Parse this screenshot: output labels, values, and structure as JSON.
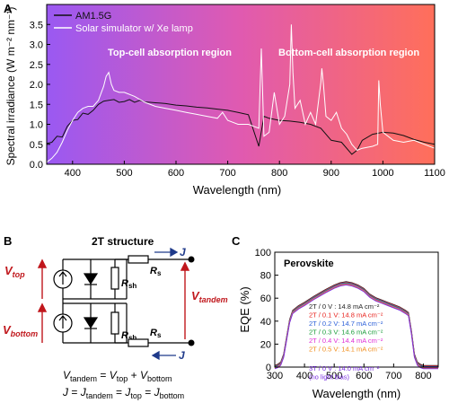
{
  "panels": {
    "a": "A",
    "b": "B",
    "c": "C"
  },
  "chart_data": [
    {
      "type": "line",
      "xlabel": "Wavelength (nm)",
      "ylabel": "Spectral irradiance (W m⁻² nm⁻¹)",
      "xlim": [
        350,
        1100
      ],
      "ylim": [
        0,
        4.0
      ],
      "xticks": [
        400,
        500,
        600,
        700,
        800,
        900,
        1000,
        1100
      ],
      "yticks": [
        0.0,
        0.5,
        1.0,
        1.5,
        2.0,
        2.5,
        3.0,
        3.5
      ],
      "background_gradient": [
        "#9a59f2",
        "#e05ab0",
        "#ff6f5a"
      ],
      "annotations": [
        "Top-cell absorption region",
        "Bottom-cell absorption region"
      ],
      "legend_position": "top-left",
      "series": [
        {
          "name": "AM1.5G",
          "color": "#111111",
          "x": [
            350,
            360,
            370,
            380,
            390,
            400,
            410,
            420,
            430,
            440,
            450,
            460,
            470,
            480,
            490,
            500,
            510,
            520,
            530,
            540,
            550,
            560,
            570,
            580,
            590,
            600,
            620,
            640,
            660,
            680,
            700,
            720,
            740,
            760,
            770,
            780,
            800,
            820,
            840,
            860,
            880,
            900,
            920,
            940,
            950,
            960,
            980,
            1000,
            1020,
            1040,
            1060,
            1080,
            1100
          ],
          "y": [
            0.52,
            0.55,
            0.7,
            0.68,
            0.95,
            1.1,
            1.12,
            1.28,
            1.25,
            1.35,
            1.5,
            1.58,
            1.6,
            1.62,
            1.55,
            1.57,
            1.62,
            1.55,
            1.6,
            1.56,
            1.55,
            1.54,
            1.53,
            1.52,
            1.5,
            1.48,
            1.46,
            1.43,
            1.41,
            1.38,
            1.35,
            1.3,
            1.24,
            0.45,
            1.2,
            1.15,
            1.1,
            1.08,
            1.05,
            1.0,
            0.9,
            0.6,
            0.55,
            0.25,
            0.35,
            0.6,
            0.75,
            0.8,
            0.78,
            0.72,
            0.62,
            0.55,
            0.5
          ]
        },
        {
          "name": "Solar simulator w/ Xe lamp",
          "color": "#ffffff",
          "x": [
            350,
            360,
            370,
            380,
            390,
            400,
            410,
            420,
            430,
            440,
            450,
            460,
            465,
            470,
            475,
            480,
            490,
            500,
            520,
            540,
            560,
            580,
            600,
            620,
            640,
            660,
            680,
            690,
            700,
            720,
            740,
            750,
            760,
            765,
            770,
            780,
            790,
            800,
            810,
            820,
            823,
            826,
            830,
            840,
            850,
            860,
            870,
            880,
            882,
            885,
            890,
            900,
            910,
            920,
            930,
            940,
            950,
            960,
            980,
            990,
            992,
            995,
            1000,
            1020,
            1040,
            1060,
            1080,
            1100
          ],
          "y": [
            0.05,
            0.15,
            0.3,
            0.55,
            0.85,
            1.1,
            1.3,
            1.4,
            1.45,
            1.45,
            1.6,
            1.95,
            2.2,
            2.3,
            2.0,
            1.85,
            1.8,
            1.8,
            1.7,
            1.55,
            1.45,
            1.4,
            1.35,
            1.3,
            1.25,
            1.2,
            1.15,
            1.3,
            1.1,
            1.0,
            1.0,
            0.95,
            0.9,
            2.9,
            0.7,
            0.8,
            1.8,
            1.0,
            1.2,
            2.0,
            3.5,
            2.3,
            1.4,
            1.6,
            1.0,
            1.3,
            1.0,
            2.05,
            2.4,
            2.0,
            1.2,
            1.1,
            1.3,
            0.9,
            0.75,
            0.5,
            0.35,
            0.4,
            0.45,
            0.5,
            2.1,
            1.5,
            0.8,
            0.6,
            0.55,
            0.6,
            0.5,
            0.4
          ]
        }
      ]
    },
    {
      "type": "line",
      "title": "Perovskite",
      "xlabel": "Wavelength (nm)",
      "ylabel": "EQE (%)",
      "xlim": [
        300,
        850
      ],
      "ylim": [
        0,
        100
      ],
      "xticks": [
        300,
        400,
        500,
        600,
        700,
        800
      ],
      "yticks": [
        0,
        20,
        40,
        60,
        80,
        100
      ],
      "legend_position": "lower-center",
      "series": [
        {
          "name": "2T / 0 V",
          "legend": "2T / 0 V : 14.8 mA cm⁻²",
          "color": "#222222",
          "x": [
            300,
            310,
            320,
            330,
            340,
            350,
            360,
            380,
            400,
            430,
            450,
            470,
            500,
            520,
            540,
            560,
            580,
            600,
            620,
            640,
            660,
            680,
            700,
            720,
            740,
            750,
            760,
            770,
            780,
            790,
            800,
            820,
            850
          ],
          "y": [
            0,
            1,
            3,
            10,
            25,
            40,
            48,
            52,
            55,
            60,
            63,
            66,
            70,
            72,
            73,
            72,
            70,
            67,
            62,
            59,
            57,
            55,
            53,
            51,
            48,
            46,
            30,
            10,
            3,
            1,
            0,
            0,
            0
          ]
        },
        {
          "name": "2T / 0.1 V",
          "legend": "2T / 0.1 V: 14.8 mA cm⁻²",
          "color": "#e8231e",
          "x": [
            300,
            310,
            320,
            330,
            340,
            350,
            360,
            380,
            400,
            430,
            450,
            470,
            500,
            520,
            540,
            560,
            580,
            600,
            620,
            640,
            660,
            680,
            700,
            720,
            740,
            750,
            760,
            770,
            780,
            790,
            800,
            820,
            850
          ],
          "y": [
            0,
            1,
            3,
            10,
            25,
            40,
            48,
            52,
            55,
            60,
            63,
            66,
            70,
            72,
            73,
            72,
            70,
            67,
            62,
            59,
            57,
            55,
            53,
            51,
            48,
            46,
            30,
            10,
            3,
            1,
            0,
            0,
            0
          ]
        },
        {
          "name": "2T / 0.2 V",
          "legend": "2T / 0.2 V: 14.7 mA cm⁻²",
          "color": "#2f62d9",
          "x": [
            300,
            310,
            320,
            330,
            340,
            350,
            360,
            380,
            400,
            430,
            450,
            470,
            500,
            520,
            540,
            560,
            580,
            600,
            620,
            640,
            660,
            680,
            700,
            720,
            740,
            750,
            760,
            770,
            780,
            790,
            800,
            820,
            850
          ],
          "y": [
            0,
            1,
            3,
            10,
            25,
            40,
            48,
            52,
            55,
            60,
            63,
            66,
            70,
            72,
            73,
            72,
            70,
            67,
            62,
            59,
            57,
            55,
            53,
            51,
            48,
            46,
            30,
            10,
            3,
            1,
            0,
            0,
            0
          ]
        },
        {
          "name": "2T / 0.3 V",
          "legend": "2T / 0.3 V: 14.6 mA cm⁻²",
          "color": "#1a9c3a",
          "x": [
            300,
            310,
            320,
            330,
            340,
            350,
            360,
            380,
            400,
            430,
            450,
            470,
            500,
            520,
            540,
            560,
            580,
            600,
            620,
            640,
            660,
            680,
            700,
            720,
            740,
            750,
            760,
            770,
            780,
            790,
            800,
            820,
            850
          ],
          "y": [
            0,
            1,
            3,
            10,
            25,
            40,
            48,
            52,
            55,
            60,
            63,
            66,
            70,
            72,
            73,
            72,
            70,
            67,
            62,
            59,
            57,
            55,
            53,
            51,
            48,
            46,
            30,
            10,
            3,
            1,
            0,
            0,
            0
          ]
        },
        {
          "name": "2T / 0.4 V",
          "legend": "2T / 0.4 V: 14.4 mA cm⁻²",
          "color": "#e02fd6",
          "x": [
            300,
            310,
            320,
            330,
            340,
            350,
            360,
            380,
            400,
            430,
            450,
            470,
            500,
            520,
            540,
            560,
            580,
            600,
            620,
            640,
            660,
            680,
            700,
            720,
            740,
            750,
            760,
            770,
            780,
            790,
            800,
            820,
            850
          ],
          "y": [
            0,
            1,
            3,
            10,
            25,
            40,
            48,
            52,
            55,
            60,
            63,
            66,
            70,
            72,
            73,
            72,
            70,
            67,
            62,
            59,
            57,
            55,
            53,
            51,
            48,
            46,
            30,
            10,
            3,
            1,
            0,
            0,
            0
          ]
        },
        {
          "name": "2T / 0.5 V",
          "legend": "2T / 0.5 V: 14.1 mA cm⁻²",
          "color": "#f08c1a",
          "x": [
            300,
            310,
            320,
            330,
            340,
            350,
            360,
            380,
            400,
            430,
            450,
            470,
            500,
            520,
            540,
            560,
            580,
            600,
            620,
            640,
            660,
            680,
            700,
            720,
            740,
            750,
            760,
            770,
            780,
            790,
            800,
            820,
            850
          ],
          "y": [
            0,
            1,
            3,
            10,
            25,
            40,
            48,
            52,
            55,
            60,
            63,
            66,
            70,
            72,
            73,
            72,
            70,
            67,
            62,
            59,
            57,
            55,
            53,
            51,
            48,
            46,
            30,
            10,
            3,
            1,
            0,
            0,
            0
          ]
        },
        {
          "name": "3T / 0 V",
          "legend": "3T / 0 V : 14.0 mA cm⁻²",
          "note": "(no light bias)",
          "color": "#7a2fe0",
          "x": [
            300,
            310,
            320,
            330,
            340,
            350,
            360,
            380,
            400,
            430,
            450,
            470,
            500,
            520,
            540,
            560,
            580,
            600,
            620,
            640,
            660,
            680,
            700,
            720,
            740,
            750,
            760,
            770,
            780,
            790,
            800,
            820,
            850
          ],
          "y": [
            0,
            1,
            3,
            10,
            25,
            40,
            48,
            52,
            55,
            60,
            63,
            66,
            70,
            72,
            73,
            72,
            70,
            67,
            62,
            59,
            57,
            55,
            53,
            51,
            48,
            46,
            30,
            10,
            3,
            1,
            0,
            0,
            0
          ]
        }
      ]
    }
  ],
  "circuit": {
    "title": "2T structure",
    "labels": {
      "v_top": "V",
      "v_top_sub": "top",
      "v_bottom": "V",
      "v_bottom_sub": "bottom",
      "v_tandem": "V",
      "v_tandem_sub": "tandem",
      "rsh_top": "R",
      "rsh_top_sub": "sh",
      "rsh_bottom": "R",
      "rsh_bottom_sub": "sh",
      "rs_top": "R",
      "rs_top_sub": "s",
      "rs_bottom": "R",
      "rs_bottom_sub": "s",
      "j_top": "J",
      "j_bottom": "J"
    },
    "equations": {
      "eq1": {
        "lhs": "V",
        "lhs_sub": "tandem",
        "eq": " = ",
        "a": "V",
        "a_sub": "top",
        "plus": " + ",
        "b": "V",
        "b_sub": "bottom"
      },
      "eq2": {
        "lhs": "J",
        "eq1": " = ",
        "a": "J",
        "a_sub": "tandem",
        "eq2": " = ",
        "b": "J",
        "b_sub": "top",
        "eq3": " = ",
        "c": "J",
        "c_sub": "bottom"
      }
    }
  }
}
